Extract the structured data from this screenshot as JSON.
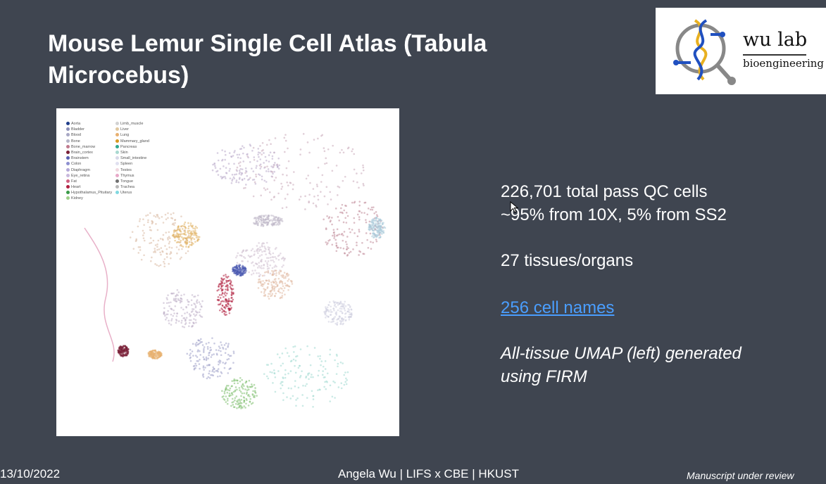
{
  "slide": {
    "title": "Mouse Lemur Single Cell Atlas (Tabula Microcebus)",
    "logo": {
      "name": "wu lab",
      "subtitle": "bioengineering"
    },
    "umap_legend": [
      {
        "label": "Aorta",
        "color": "#1f3d8a"
      },
      {
        "label": "Bladder",
        "color": "#8c8fb8"
      },
      {
        "label": "Blood",
        "color": "#a8a8c4"
      },
      {
        "label": "Bone",
        "color": "#b5b5c8"
      },
      {
        "label": "Bone_marrow",
        "color": "#c07a8e"
      },
      {
        "label": "Brain_cortex",
        "color": "#7a2038"
      },
      {
        "label": "Brainstem",
        "color": "#5a60b0"
      },
      {
        "label": "Colon",
        "color": "#8d8fd0"
      },
      {
        "label": "Diaphragm",
        "color": "#b4a8d8"
      },
      {
        "label": "Eye_retina",
        "color": "#c8b8dc"
      },
      {
        "label": "Fat",
        "color": "#d06080"
      },
      {
        "label": "Heart",
        "color": "#b02040"
      },
      {
        "label": "Hypothalamus_Pituitary",
        "color": "#3a9a48"
      },
      {
        "label": "Kidney",
        "color": "#9fd08a"
      },
      {
        "label": "Limb_muscle",
        "color": "#d2d2d2"
      },
      {
        "label": "Liver",
        "color": "#e0c8a0"
      },
      {
        "label": "Lung",
        "color": "#e8b070"
      },
      {
        "label": "Mammary_gland",
        "color": "#d89820"
      },
      {
        "label": "Pancreas",
        "color": "#30a890"
      },
      {
        "label": "Skin",
        "color": "#a8d8d0"
      },
      {
        "label": "Small_intestine",
        "color": "#d8d8e8"
      },
      {
        "label": "Spleen",
        "color": "#e0e0f0"
      },
      {
        "label": "Testes",
        "color": "#f0d8e0"
      },
      {
        "label": "Thymus",
        "color": "#e8a8c8"
      },
      {
        "label": "Tongue",
        "color": "#707070"
      },
      {
        "label": "Trachea",
        "color": "#b8b8b8"
      },
      {
        "label": "Uterus",
        "color": "#80d8e0"
      }
    ],
    "stats": {
      "line1": "226,701 total pass QC cells",
      "line2": "~95% from 10X, 5% from SS2",
      "tissues": "27 tissues/organs",
      "cell_names_link": "256 cell names",
      "umap_note_line1": "All-tissue UMAP (left) generated",
      "umap_note_line2": "using FIRM"
    },
    "footer": {
      "date": "13/10/2022",
      "author": "Angela Wu | LIFS x CBE | HKUST",
      "status": "Manuscript under review"
    }
  }
}
